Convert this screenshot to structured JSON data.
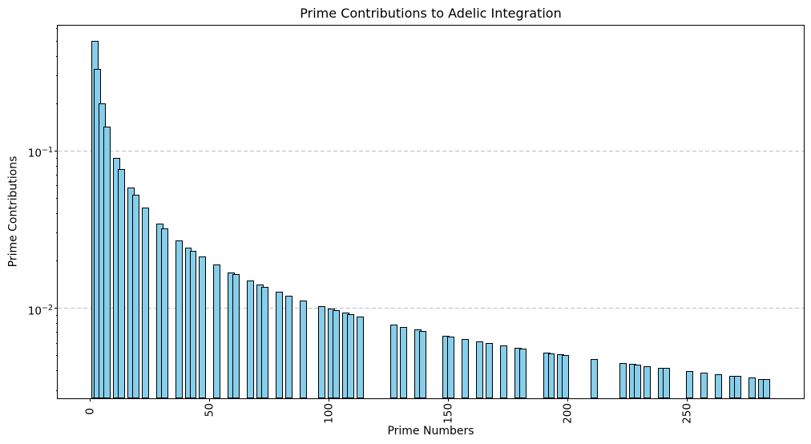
{
  "figure": {
    "title": "Prime Contributions to Adelic Integration",
    "xlabel": "Prime Numbers",
    "ylabel": "Prime Contributions"
  },
  "chart_data": {
    "type": "bar",
    "title": "Prime Contributions to Adelic Integration",
    "xlabel": "Prime Numbers",
    "ylabel": "Prime Contributions",
    "yscale": "log",
    "grid": "horizontal dashed at major y ticks",
    "legend": null,
    "bar_color": "#87CEEB",
    "bar_edge_color": "#000000",
    "grid_color": "#bdbdbd",
    "bar_width_data_units": 3,
    "xlim": [
      -13.7,
      298.7
    ],
    "ylim": [
      0.00267,
      0.628
    ],
    "xticks": [
      0,
      50,
      100,
      150,
      200,
      250
    ],
    "xtick_rotation_deg": 90,
    "yticks": [
      {
        "value": 0.1,
        "label": "10^−1"
      },
      {
        "value": 0.01,
        "label": "10^−2"
      }
    ],
    "x_primes": [
      2,
      3,
      5,
      7,
      11,
      13,
      17,
      19,
      23,
      29,
      31,
      37,
      41,
      43,
      47,
      53,
      59,
      61,
      67,
      71,
      73,
      79,
      83,
      89,
      97,
      101,
      103,
      107,
      109,
      113,
      127,
      131,
      137,
      139,
      149,
      151,
      157,
      163,
      167,
      173,
      179,
      181,
      191,
      193,
      197,
      199,
      211,
      223,
      227,
      229,
      233,
      239,
      241,
      251,
      257,
      263,
      269,
      271,
      277,
      281,
      283
    ],
    "values": [
      0.5,
      0.333333,
      0.2,
      0.142857,
      0.090909,
      0.076923,
      0.058824,
      0.052632,
      0.043478,
      0.034483,
      0.032258,
      0.027027,
      0.02439,
      0.023256,
      0.021277,
      0.018868,
      0.016949,
      0.016393,
      0.014925,
      0.014085,
      0.013699,
      0.012658,
      0.012048,
      0.011236,
      0.010309,
      0.009901,
      0.009709,
      0.009346,
      0.009174,
      0.00885,
      0.007874,
      0.007634,
      0.007299,
      0.007194,
      0.006711,
      0.006623,
      0.006369,
      0.006135,
      0.005988,
      0.00578,
      0.005587,
      0.005525,
      0.005236,
      0.005181,
      0.005076,
      0.005025,
      0.004739,
      0.004484,
      0.004405,
      0.004367,
      0.004292,
      0.004184,
      0.004149,
      0.003984,
      0.003891,
      0.003802,
      0.003717,
      0.00369,
      0.00361,
      0.003559,
      0.003534
    ]
  }
}
